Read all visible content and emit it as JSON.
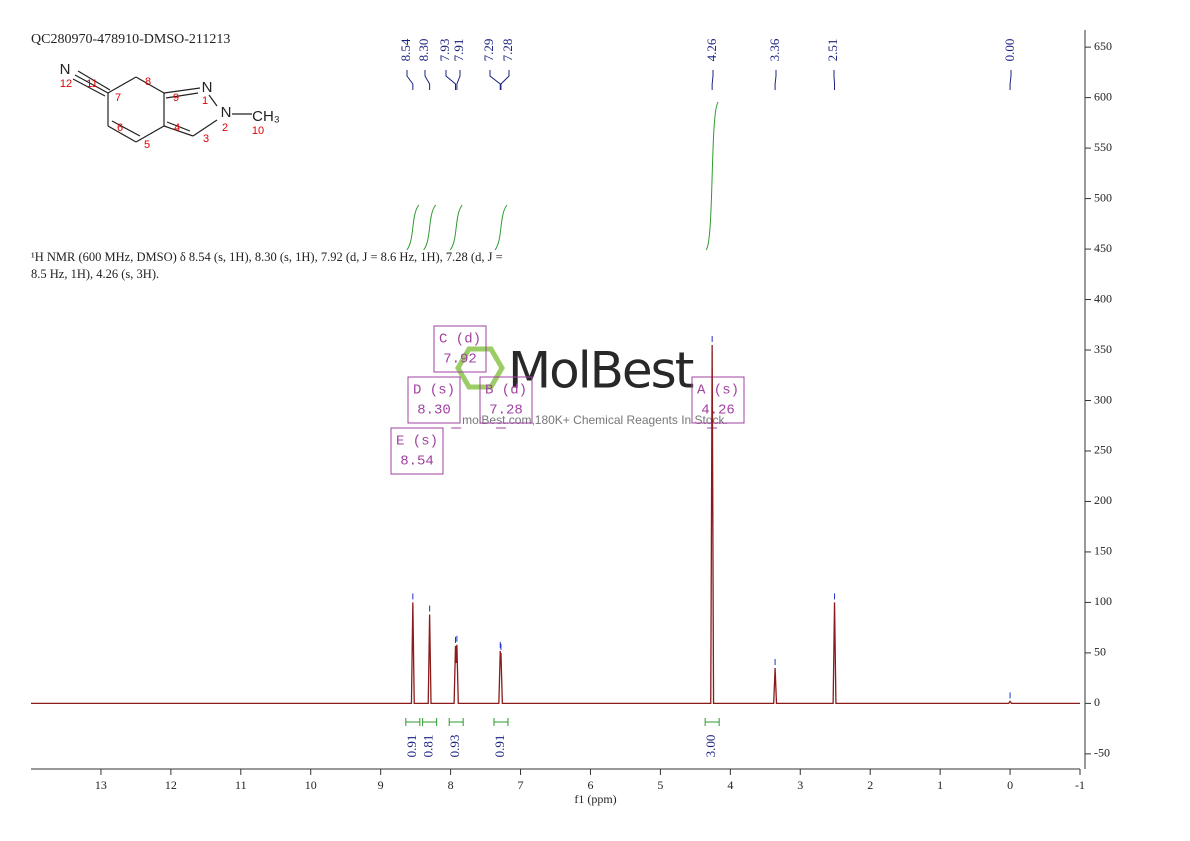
{
  "chart_data": {
    "type": "line",
    "title": "QC280970-478910-DMSO-211213",
    "description": [
      "¹H NMR (600 MHz, DMSO) δ 8.54 (s, 1H), 8.30 (s, 1H), 7.92 (d, J = 8.6 Hz, 1H), 7.28 (d, J =",
      "8.5 Hz, 1H), 4.26 (s, 3H)."
    ],
    "watermark": {
      "brand": "MolBest",
      "tagline": "molBest.com,180K+ Chemical Reagents In Stock."
    },
    "x_label": "f1 (ppm)",
    "color": "#8b1a1a",
    "x": [
      14,
      8.56,
      8.54,
      8.52,
      8.32,
      8.3,
      8.28,
      7.95,
      7.93,
      7.92,
      7.91,
      7.89,
      7.31,
      7.29,
      7.285,
      7.28,
      7.26,
      4.28,
      4.26,
      4.24,
      3.38,
      3.36,
      3.34,
      2.53,
      2.51,
      2.49,
      0.02,
      0,
      -0.02,
      -1
    ],
    "values": [
      0,
      0,
      100,
      0,
      0,
      88,
      0,
      0,
      57,
      40,
      58,
      0,
      0,
      52,
      40,
      50,
      0,
      0,
      355,
      0,
      0,
      35,
      0,
      0,
      100,
      0,
      0,
      2,
      0,
      0
    ],
    "xlim": [
      14,
      -1
    ],
    "xticks": [
      13,
      12,
      11,
      10,
      9,
      8,
      7,
      6,
      5,
      4,
      3,
      2,
      1,
      0,
      -1
    ],
    "ylim": [
      -65,
      665
    ],
    "yticks": [
      -50,
      0,
      50,
      100,
      150,
      200,
      250,
      300,
      350,
      400,
      450,
      500,
      550,
      600,
      650
    ],
    "y_axis_side": "right",
    "peak_labels": [
      8.54,
      {
        "value": 8.3,
        "label": "8.30"
      },
      7.93,
      7.91,
      7.29,
      7.28,
      4.26,
      3.36,
      2.51,
      {
        "value": 0,
        "label": "0.00"
      }
    ],
    "integrals": [
      {
        "x": 8.54,
        "value": 0.91
      },
      {
        "x": 8.3,
        "value": 0.81
      },
      {
        "x": 7.92,
        "value": 0.93
      },
      {
        "x": 7.28,
        "value": 0.91
      },
      {
        "x": 4.26,
        "value": {
          "value": 3,
          "label": "3.00"
        }
      }
    ],
    "multiplets": [
      {
        "name": "A (s)",
        "shift": 4.26
      },
      {
        "name": "B (d)",
        "shift": 7.28
      },
      {
        "name": "C (d)",
        "shift": 7.92
      },
      {
        "name": "D (s)",
        "shift": {
          "value": 8.3,
          "label": "8.30"
        }
      },
      {
        "name": "E (s)",
        "shift": 8.54
      }
    ],
    "structure": {
      "labels": [
        "N",
        "12",
        "11",
        "8",
        "7",
        "9",
        "N",
        "1",
        "N",
        "2",
        "CH₃",
        "10",
        "6",
        "5",
        "4",
        "3"
      ]
    }
  }
}
